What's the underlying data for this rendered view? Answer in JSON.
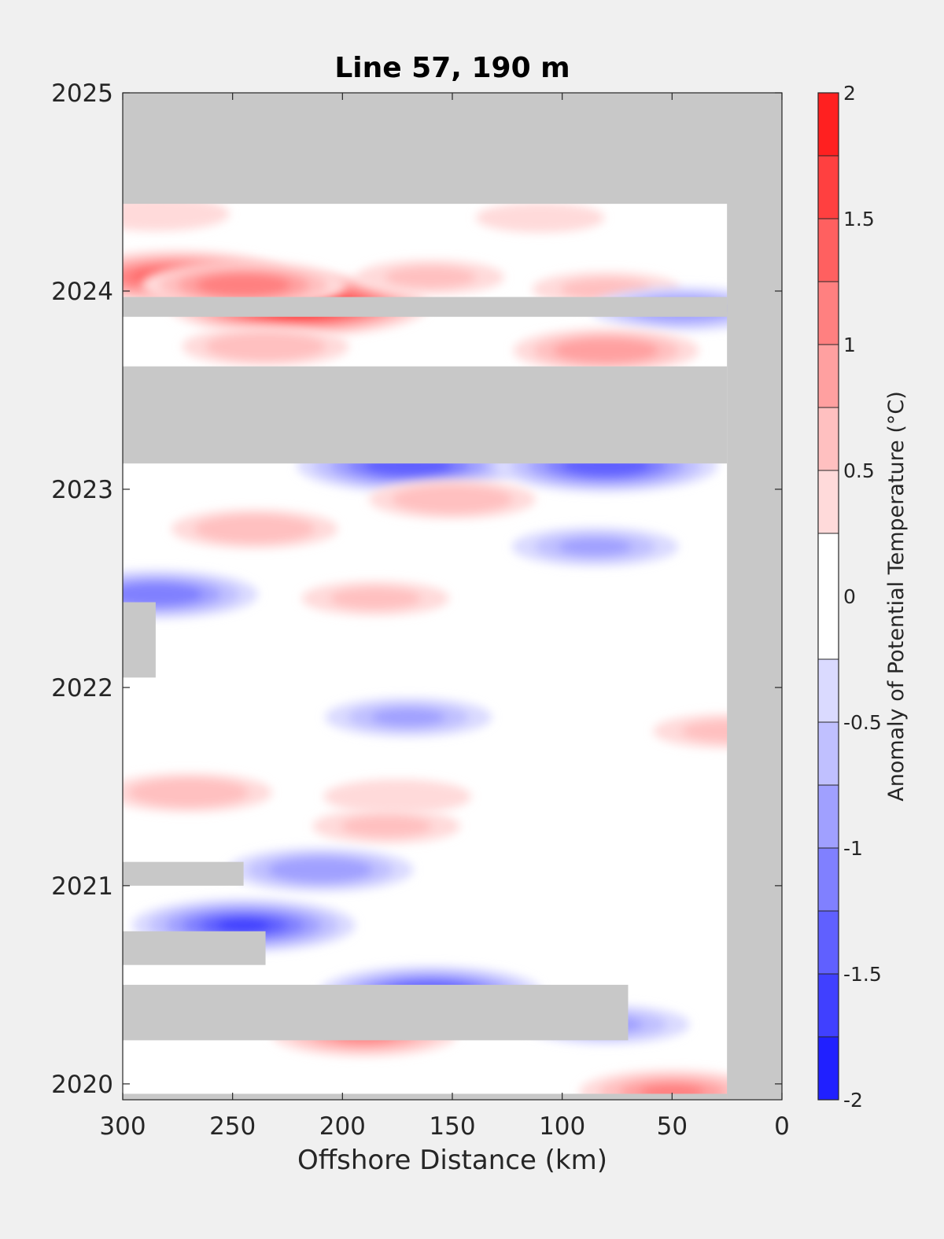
{
  "chart_data": {
    "type": "heatmap",
    "title": "Line 57, 190 m",
    "xlabel": "Offshore Distance (km)",
    "ylabel": "",
    "xlim": [
      300,
      0
    ],
    "ylim": [
      2019.92,
      2025
    ],
    "x_reversed": true,
    "x_ticks": [
      300,
      250,
      200,
      150,
      100,
      50,
      0
    ],
    "y_ticks": [
      2020,
      2021,
      2022,
      2023,
      2024,
      2025
    ],
    "colorbar": {
      "label": "Anomaly of Potential Temperature (°C)",
      "limits": [
        -2,
        2
      ],
      "ticks": [
        -2,
        -1.5,
        -1,
        -0.5,
        0,
        0.5,
        1,
        1.5,
        2
      ],
      "levels": [
        -2,
        -1.75,
        -1.5,
        -1.25,
        -1,
        -0.75,
        -0.5,
        -0.25,
        0.25,
        0.5,
        0.75,
        1,
        1.25,
        1.5,
        1.75,
        2
      ],
      "colors": [
        "#0000ff",
        "#2020ff",
        "#4040ff",
        "#6060ff",
        "#8080ff",
        "#a0a0ff",
        "#c0c0ff",
        "#dadaff",
        "#ffffff",
        "#ffdada",
        "#ffc0c0",
        "#ffa0a0",
        "#ff8080",
        "#ff6060",
        "#ff4040",
        "#ff2020",
        "#ff0000"
      ]
    },
    "no_data_color": "#c8c8c8",
    "no_data_regions": [
      {
        "x": [
          300,
          0
        ],
        "y": [
          2024.44,
          2025
        ]
      },
      {
        "x": [
          25,
          0
        ],
        "y": [
          2019.92,
          2025
        ]
      },
      {
        "x": [
          300,
          25
        ],
        "y": [
          2023.13,
          2023.62
        ]
      },
      {
        "x": [
          300,
          25
        ],
        "y": [
          2023.87,
          2023.97
        ]
      },
      {
        "x": [
          300,
          25
        ],
        "y": [
          2019.92,
          2019.95
        ]
      },
      {
        "x": [
          300,
          285
        ],
        "y": [
          2022.05,
          2022.43
        ]
      },
      {
        "x": [
          300,
          245
        ],
        "y": [
          2021.0,
          2021.12
        ]
      },
      {
        "x": [
          300,
          235
        ],
        "y": [
          2020.6,
          2020.77
        ]
      },
      {
        "x": [
          300,
          70
        ],
        "y": [
          2020.22,
          2020.5
        ]
      }
    ],
    "anomaly_features": [
      {
        "x": 220,
        "y": 2023.93,
        "value": 1.9
      },
      {
        "x": 275,
        "y": 2024.07,
        "value": 1.5
      },
      {
        "x": 245,
        "y": 2024.03,
        "value": 1.2
      },
      {
        "x": 160,
        "y": 2024.07,
        "value": 0.5
      },
      {
        "x": 80,
        "y": 2024.01,
        "value": 0.6
      },
      {
        "x": 110,
        "y": 2024.37,
        "value": 0.3
      },
      {
        "x": 285,
        "y": 2024.39,
        "value": 0.4
      },
      {
        "x": 45,
        "y": 2023.91,
        "value": -1.0
      },
      {
        "x": 80,
        "y": 2023.7,
        "value": 0.9
      },
      {
        "x": 235,
        "y": 2023.72,
        "value": 0.7
      },
      {
        "x": 170,
        "y": 2023.12,
        "value": -1.5
      },
      {
        "x": 80,
        "y": 2023.12,
        "value": -1.4
      },
      {
        "x": 150,
        "y": 2022.95,
        "value": 0.7
      },
      {
        "x": 240,
        "y": 2022.8,
        "value": 0.7
      },
      {
        "x": 85,
        "y": 2022.71,
        "value": -0.8
      },
      {
        "x": 285,
        "y": 2022.47,
        "value": -1.2
      },
      {
        "x": 185,
        "y": 2022.45,
        "value": 0.6
      },
      {
        "x": 170,
        "y": 2021.85,
        "value": -0.8
      },
      {
        "x": 270,
        "y": 2021.47,
        "value": 0.7
      },
      {
        "x": 175,
        "y": 2021.45,
        "value": 0.4
      },
      {
        "x": 180,
        "y": 2021.3,
        "value": 0.5
      },
      {
        "x": 210,
        "y": 2021.08,
        "value": -0.9
      },
      {
        "x": 245,
        "y": 2020.8,
        "value": -1.6
      },
      {
        "x": 160,
        "y": 2020.46,
        "value": -1.5
      },
      {
        "x": 190,
        "y": 2020.25,
        "value": 1.0
      },
      {
        "x": 80,
        "y": 2020.3,
        "value": -0.8
      },
      {
        "x": 50,
        "y": 2019.96,
        "value": 1.0
      },
      {
        "x": 25,
        "y": 2021.78,
        "value": 0.6
      }
    ]
  }
}
